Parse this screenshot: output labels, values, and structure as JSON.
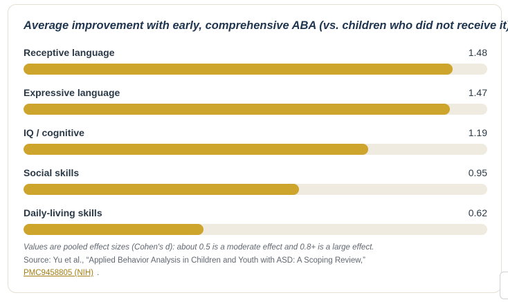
{
  "chart_data": {
    "type": "bar",
    "orientation": "horizontal",
    "title": "Average improvement with early, comprehensive ABA (vs. children who did not receive it)",
    "categories": [
      "Receptive language",
      "Expressive language",
      "IQ / cognitive",
      "Social skills",
      "Daily-living skills"
    ],
    "values": [
      1.48,
      1.47,
      1.19,
      0.95,
      0.62
    ],
    "value_labels": [
      "1.48",
      "1.47",
      "1.19",
      "0.95",
      "0.62"
    ],
    "xlim": [
      0,
      1.6
    ],
    "bar_color": "#cda42c",
    "track_color": "#f0ebe0"
  },
  "footnote": {
    "note": "Values are pooled effect sizes (Cohen's d): about 0.5 is a moderate effect and 0.8+ is a large effect.",
    "source": "Source: Yu et al., “Applied Behavior Analysis in Children and Youth with ASD: A Scoping Review,”",
    "link_text": "PMC9458805 (NIH)",
    "link_tail": "."
  }
}
